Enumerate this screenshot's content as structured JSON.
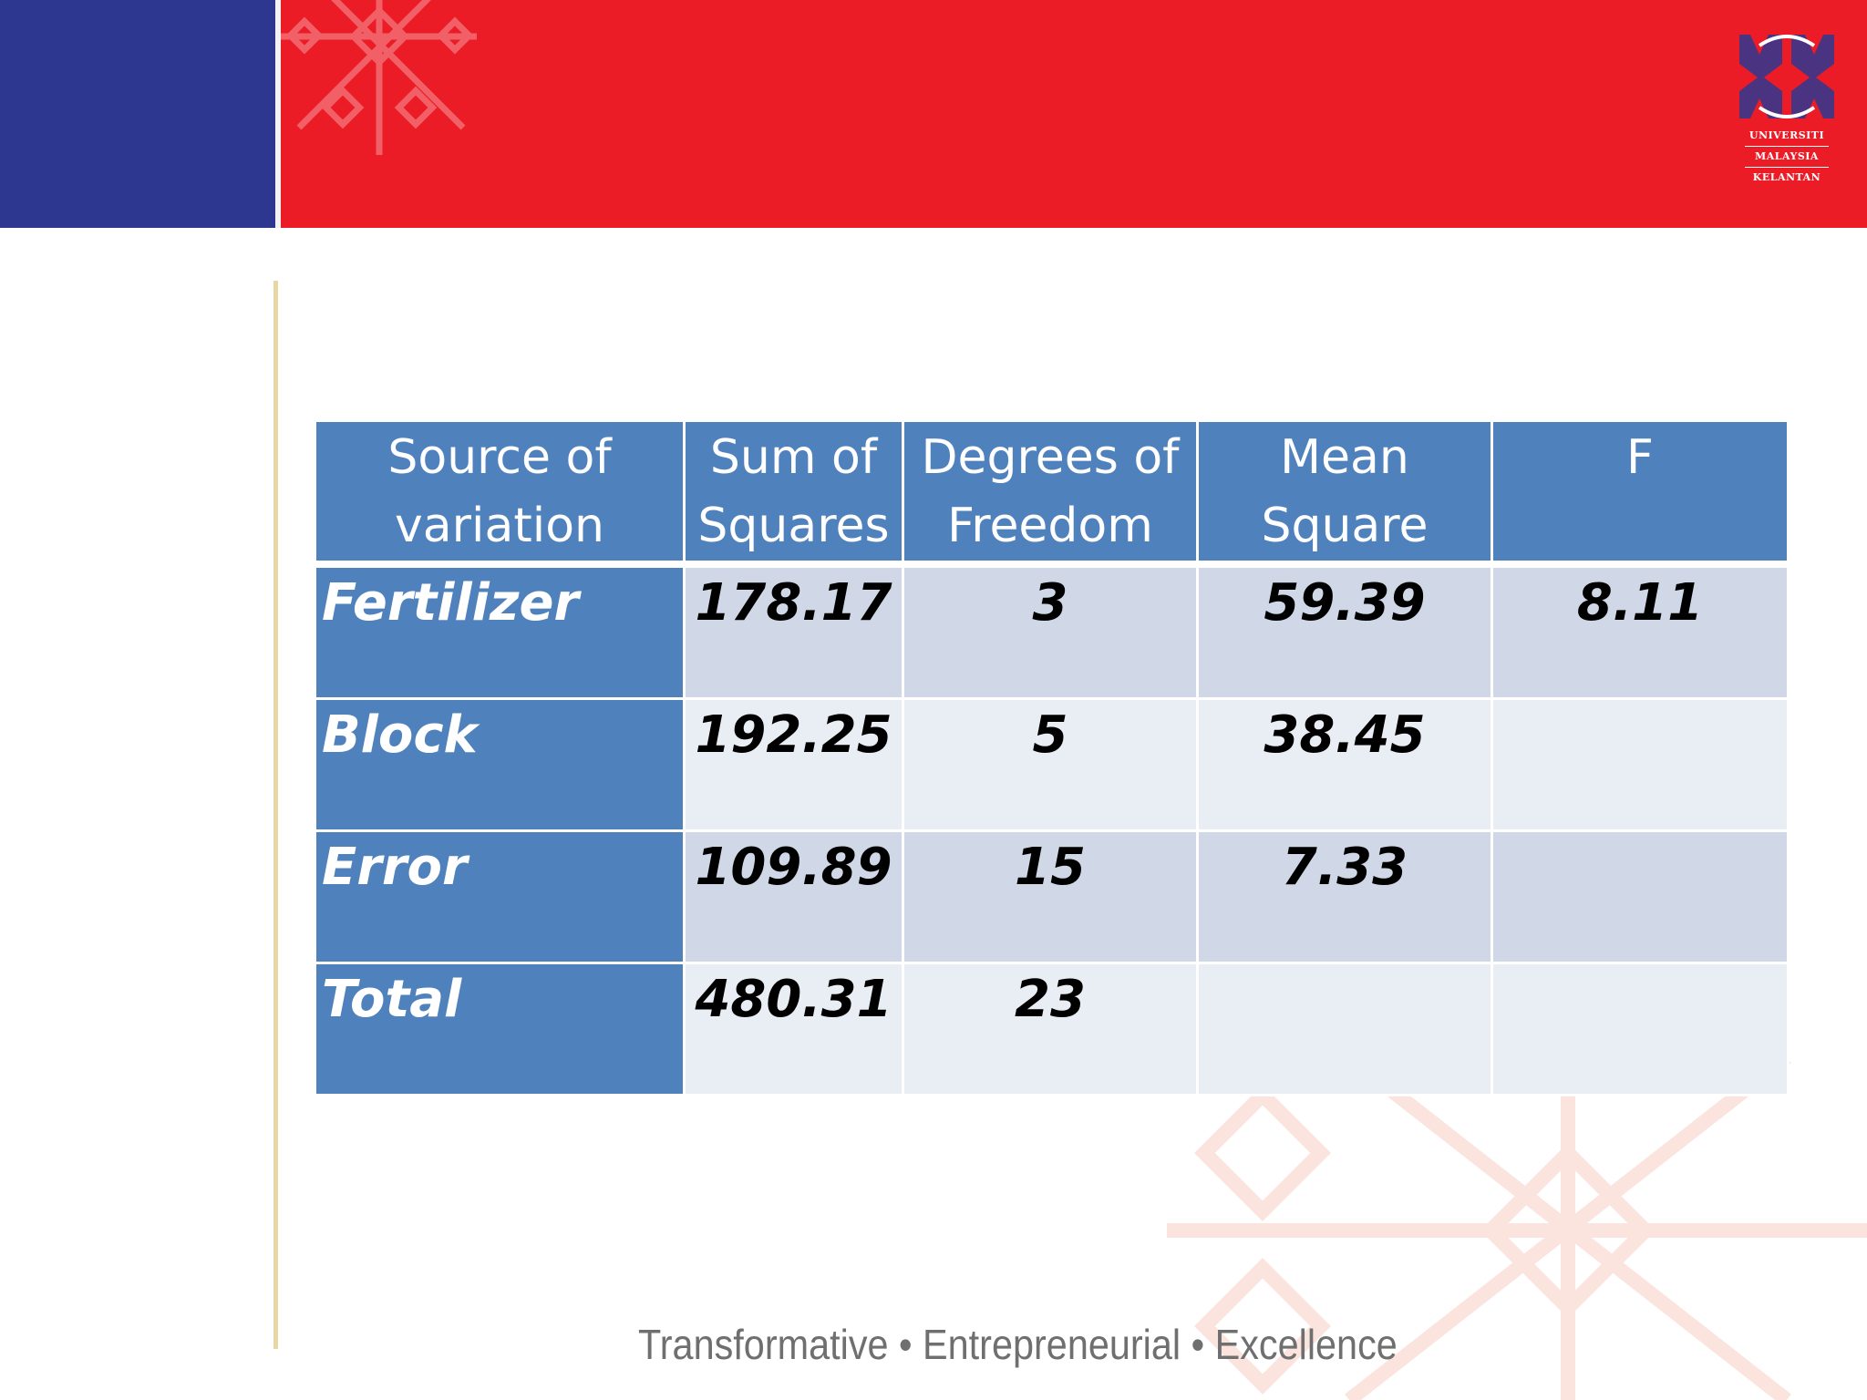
{
  "header": {
    "logo": {
      "line1": "UNIVERSITI",
      "line2": "MALAYSIA",
      "line3": "KELANTAN"
    },
    "colors": {
      "blue": "#2e3790",
      "red": "#ec1c27"
    }
  },
  "table": {
    "headers": [
      "Source of variation",
      "Sum of Squares",
      "Degrees of Freedom",
      "Mean Square",
      "F"
    ],
    "rows": [
      {
        "source": "Fertilizer",
        "ss": "178.17",
        "df": "3",
        "ms": "59.39",
        "f": "8.11"
      },
      {
        "source": "Block",
        "ss": "192.25",
        "df": "5",
        "ms": "38.45",
        "f": ""
      },
      {
        "source": "Error",
        "ss": "109.89",
        "df": "15",
        "ms": "7.33",
        "f": ""
      },
      {
        "source": "Total",
        "ss": "480.31",
        "df": "23",
        "ms": "",
        "f": ""
      }
    ],
    "colors": {
      "header": "#4f81bd",
      "band_dark": "#d0d8e8",
      "band_light": "#e9edf4"
    }
  },
  "footer": {
    "tagline": "Transformative • Entrepreneurial • Excellence"
  }
}
